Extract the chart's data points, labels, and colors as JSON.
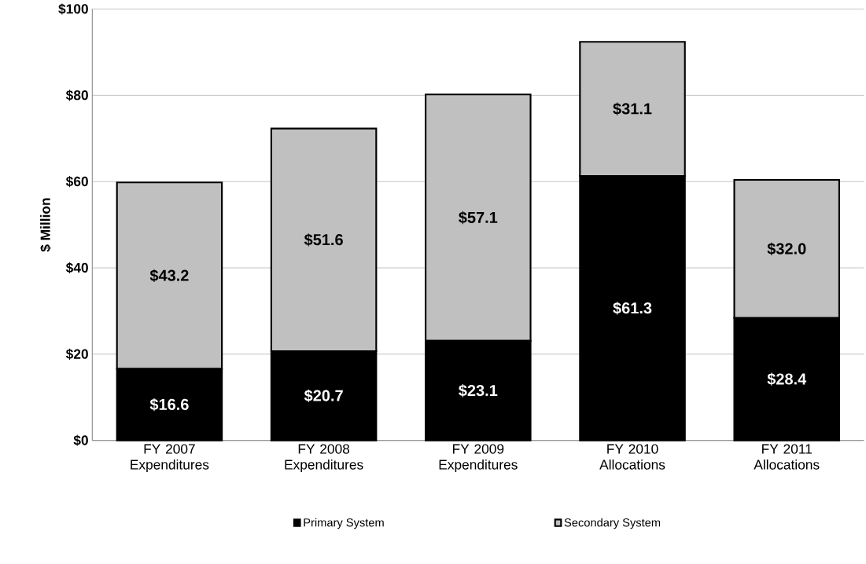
{
  "chart_data": {
    "type": "bar",
    "stacked": true,
    "ylabel": "$ Million",
    "categories": [
      "FY 2007 Expenditures",
      "FY 2008 Expenditures",
      "FY 2009 Expenditures",
      "FY 2010 Allocations",
      "FY 2011 Allocations"
    ],
    "series": [
      {
        "name": "Primary System",
        "color": "#000000",
        "values": [
          16.6,
          20.7,
          23.1,
          61.3,
          28.4
        ],
        "value_labels": [
          "$16.6",
          "$20.7",
          "$23.1",
          "$61.3",
          "$28.4"
        ]
      },
      {
        "name": "Secondary System",
        "color": "#c0c0c0",
        "values": [
          43.2,
          51.6,
          57.1,
          31.1,
          32.0
        ],
        "value_labels": [
          "$43.2",
          "$51.6",
          "$57.1",
          "$31.1",
          "$32.0"
        ]
      }
    ],
    "ylim": [
      0,
      100
    ],
    "yticks": [
      {
        "value": 0,
        "label": "$0"
      },
      {
        "value": 20,
        "label": "$20"
      },
      {
        "value": 40,
        "label": "$40"
      },
      {
        "value": 60,
        "label": "$60"
      },
      {
        "value": 80,
        "label": "$80"
      },
      {
        "value": 100,
        "label": "$100"
      }
    ],
    "grid": "y",
    "legend": "bottom"
  }
}
